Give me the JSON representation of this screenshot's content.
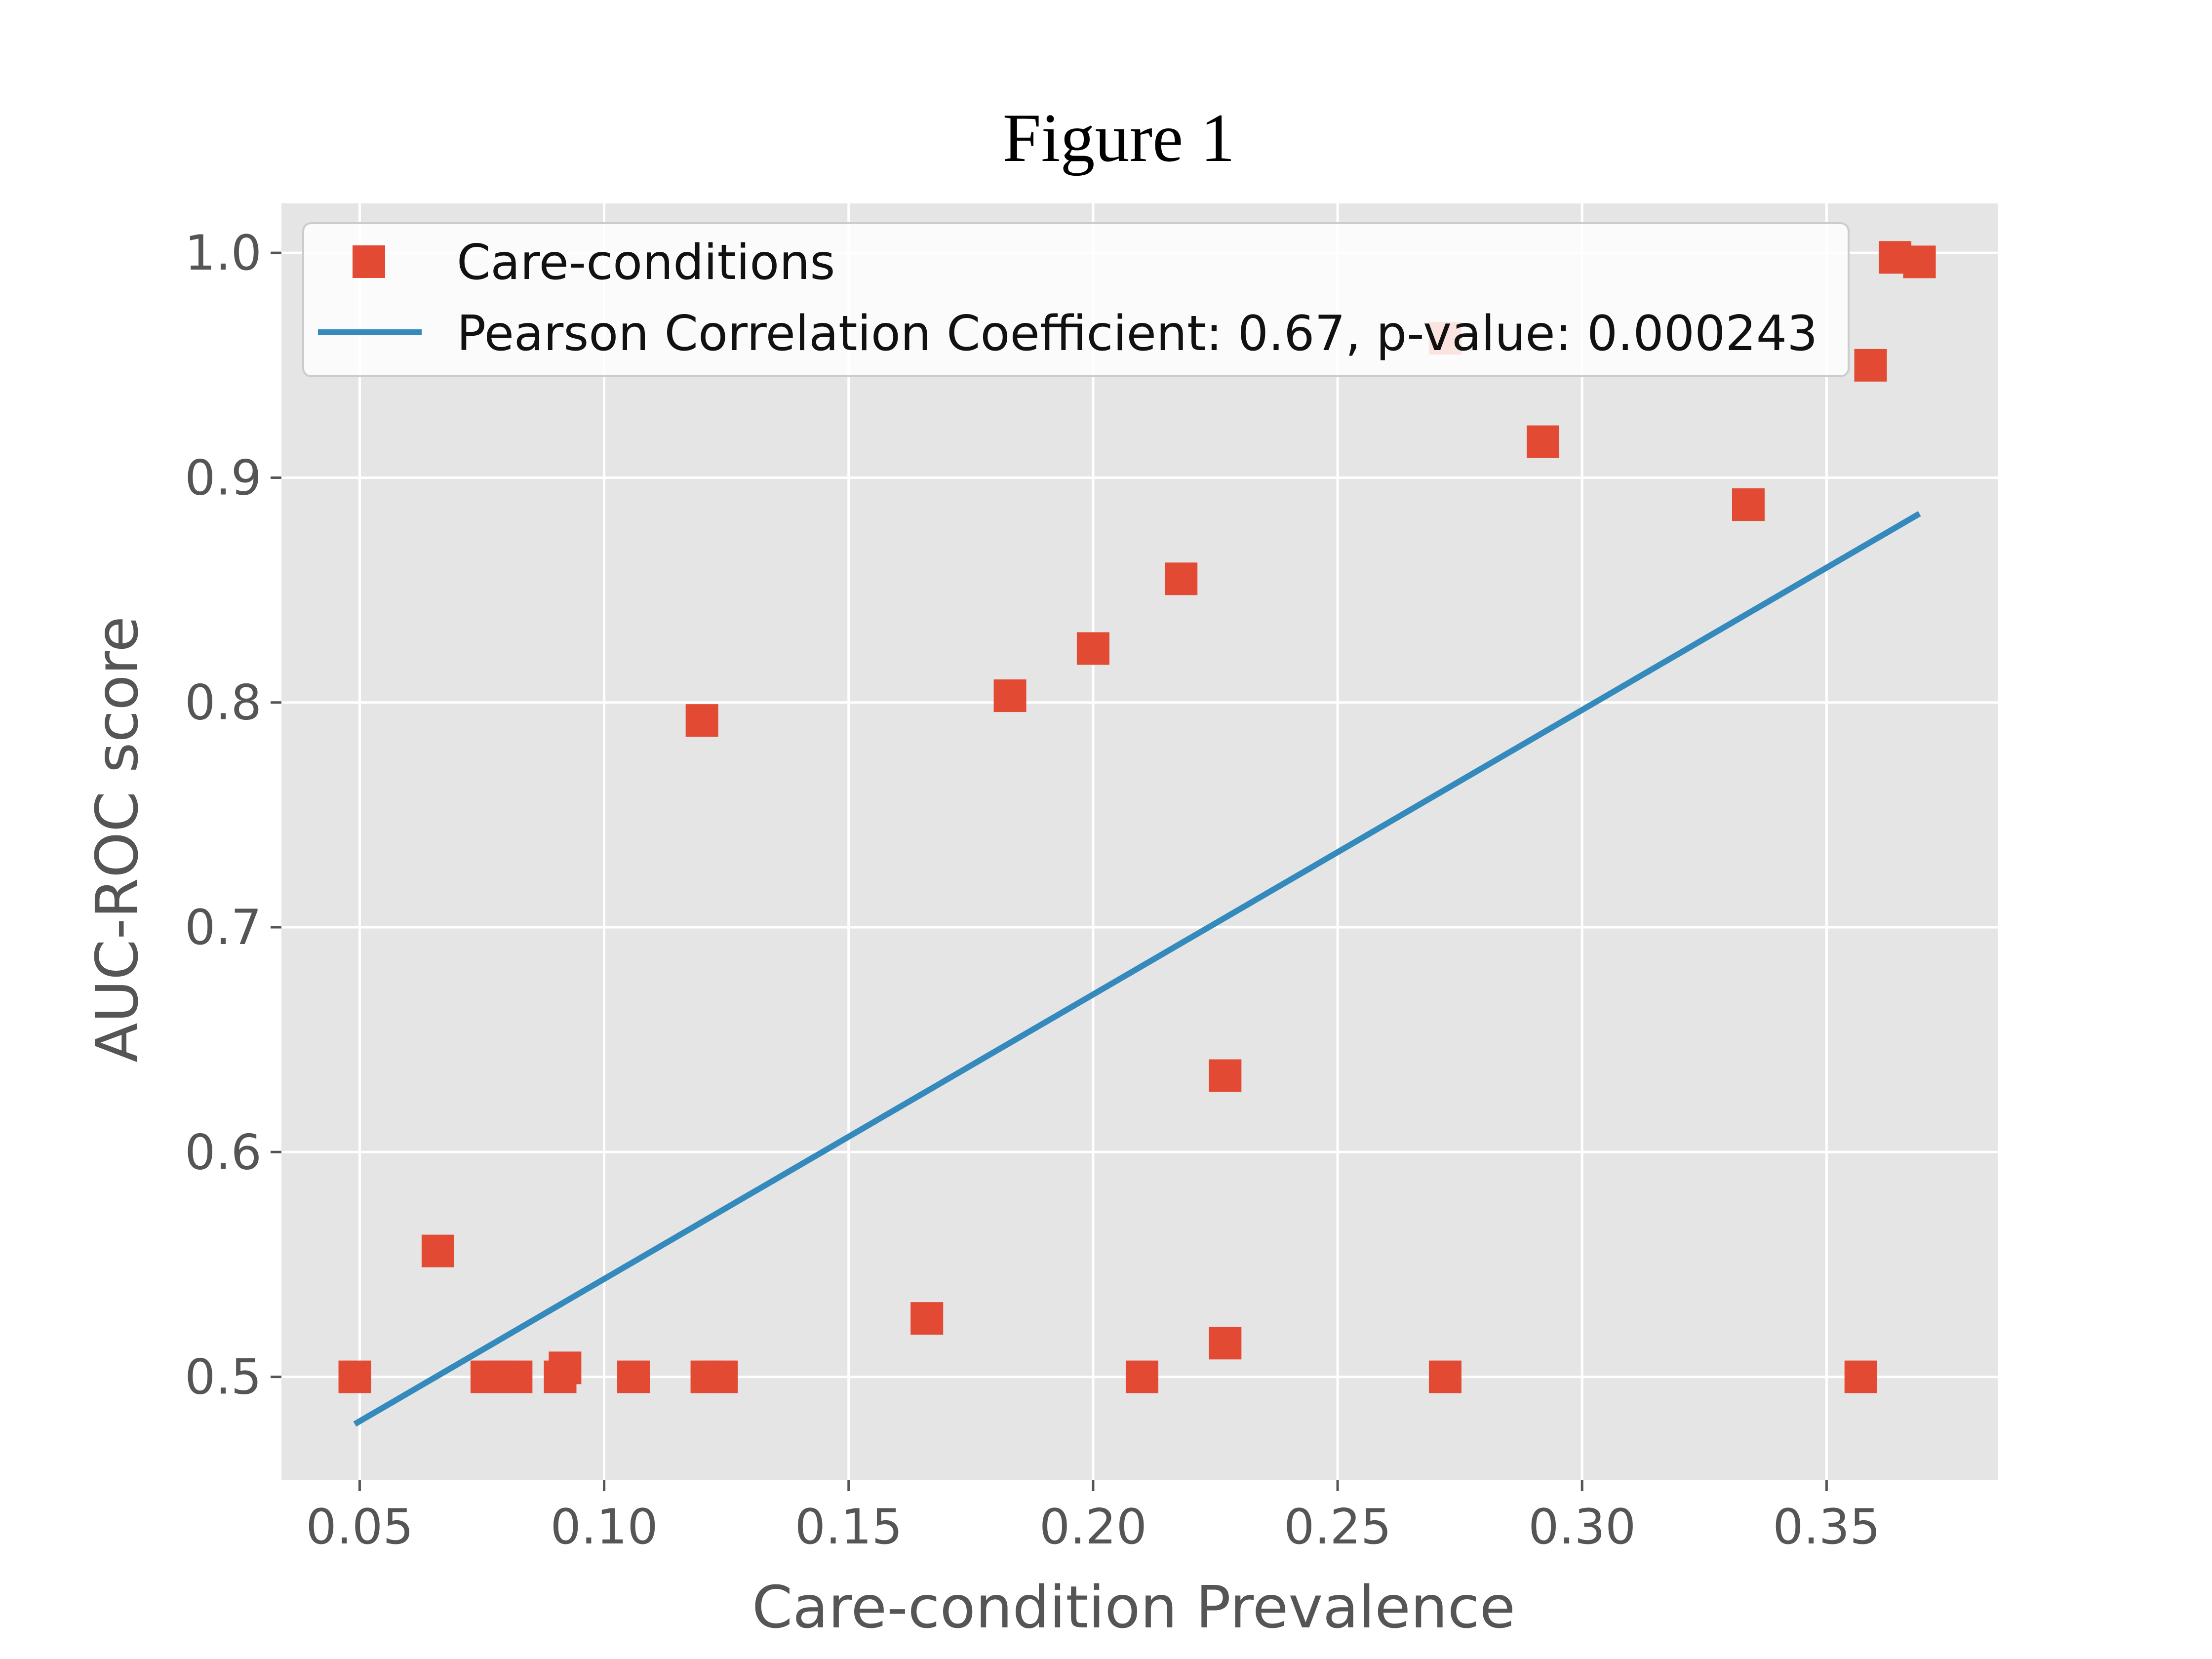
{
  "colors": {
    "background": "#ffffff",
    "plot_background": "#e5e5e5",
    "grid": "#ffffff",
    "marker": "#e24a33",
    "fit_line": "#348abd",
    "tick_text": "#555555"
  },
  "chart_data": {
    "type": "scatter",
    "title": "Figure 1",
    "xlabel": "Care-condition Prevalence",
    "ylabel": "AUC-ROC score",
    "xlim": [
      0.034,
      0.385
    ],
    "ylim": [
      0.454,
      1.022
    ],
    "xticks": [
      0.05,
      0.1,
      0.15,
      0.2,
      0.25,
      0.3,
      0.35
    ],
    "xtick_labels": [
      "0.05",
      "0.10",
      "0.15",
      "0.20",
      "0.25",
      "0.30",
      "0.35"
    ],
    "yticks": [
      0.5,
      0.6,
      0.7,
      0.8,
      0.9,
      1.0
    ],
    "ytick_labels": [
      "0.5",
      "0.6",
      "0.7",
      "0.8",
      "0.9",
      "1.0"
    ],
    "grid": true,
    "legend_position": "top-left",
    "series": [
      {
        "name": "Care-conditions",
        "kind": "scatter",
        "marker": "square",
        "points": [
          {
            "x": 0.049,
            "y": 0.5
          },
          {
            "x": 0.066,
            "y": 0.556
          },
          {
            "x": 0.076,
            "y": 0.5
          },
          {
            "x": 0.079,
            "y": 0.5
          },
          {
            "x": 0.082,
            "y": 0.5
          },
          {
            "x": 0.091,
            "y": 0.5
          },
          {
            "x": 0.092,
            "y": 0.504
          },
          {
            "x": 0.106,
            "y": 0.5
          },
          {
            "x": 0.12,
            "y": 0.792
          },
          {
            "x": 0.121,
            "y": 0.5
          },
          {
            "x": 0.124,
            "y": 0.5
          },
          {
            "x": 0.166,
            "y": 0.526
          },
          {
            "x": 0.183,
            "y": 0.803
          },
          {
            "x": 0.2,
            "y": 0.824
          },
          {
            "x": 0.21,
            "y": 0.5
          },
          {
            "x": 0.218,
            "y": 0.855
          },
          {
            "x": 0.227,
            "y": 0.634
          },
          {
            "x": 0.227,
            "y": 0.515
          },
          {
            "x": 0.272,
            "y": 0.962
          },
          {
            "x": 0.272,
            "y": 0.5
          },
          {
            "x": 0.292,
            "y": 0.916
          },
          {
            "x": 0.334,
            "y": 0.888
          },
          {
            "x": 0.357,
            "y": 0.5
          },
          {
            "x": 0.359,
            "y": 0.95
          },
          {
            "x": 0.364,
            "y": 0.998
          },
          {
            "x": 0.369,
            "y": 0.996
          }
        ]
      },
      {
        "name": "Pearson Correlation Coefficient: 0.67, p-value:  0.000243",
        "kind": "line",
        "points": [
          {
            "x": 0.049,
            "y": 0.479
          },
          {
            "x": 0.369,
            "y": 0.884
          }
        ]
      }
    ]
  }
}
